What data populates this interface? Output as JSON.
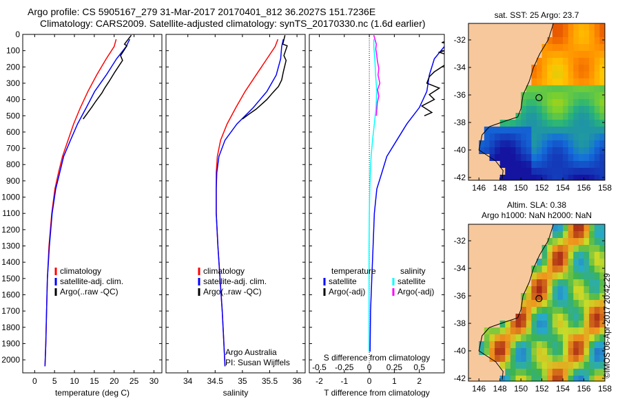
{
  "titles": {
    "line1": "Argo profile: CS 5905167_279 31-Mar-2017 20170401_812 36.2027S 151.7236E",
    "line2": "Climatology: CARS2009. Satellite-adjusted climatology: synTS_20170330.nc (1.6d earlier)"
  },
  "watermark": "©IMOS 06-Apr-2017 20:42:29",
  "colors": {
    "climatology": "#ff0000",
    "satellite": "#0000ff",
    "argo": "#000000",
    "salinity_satellite": "#00ffff",
    "salinity_argo": "#ff00ff",
    "land": "#f7c89c",
    "marker": "#e8e8e8"
  },
  "chart_data": [
    {
      "type": "line",
      "id": "temperature",
      "xlabel": "temperature (deg C)",
      "ylabel": "",
      "xlim": [
        -3,
        32
      ],
      "ylim": [
        2080,
        0
      ],
      "xticks": [
        0,
        5,
        10,
        15,
        20,
        25,
        30
      ],
      "yticks": [
        0,
        100,
        200,
        300,
        400,
        500,
        600,
        700,
        800,
        900,
        1000,
        1100,
        1200,
        1300,
        1400,
        1500,
        1600,
        1700,
        1800,
        1900,
        2000
      ],
      "legend": [
        "climatology",
        "satellite-adj. clim.",
        "Argo(..raw -QC)"
      ],
      "legend_position": "lower-center",
      "series": [
        {
          "name": "climatology",
          "color_key": "climatology",
          "x": [
            20.5,
            20.0,
            18.0,
            15.6,
            13.4,
            11.5,
            9.8,
            8.4,
            7.0,
            6.0,
            5.1,
            4.3,
            3.6,
            3.2,
            3.0,
            2.8,
            2.6
          ],
          "y": [
            30,
            75,
            150,
            250,
            350,
            450,
            550,
            650,
            750,
            850,
            950,
            1100,
            1300,
            1500,
            1700,
            1900,
            2040
          ]
        },
        {
          "name": "satellite-adj. clim.",
          "color_key": "satellite",
          "x": [
            23.9,
            23.0,
            20.6,
            18.0,
            15.1,
            13.0,
            10.8,
            9.0,
            7.3,
            6.3,
            5.3,
            4.4,
            3.7,
            3.2,
            3.0,
            2.8,
            2.6
          ],
          "y": [
            30,
            75,
            150,
            250,
            350,
            450,
            550,
            650,
            750,
            850,
            950,
            1100,
            1300,
            1500,
            1700,
            1900,
            2040
          ]
        },
        {
          "name": "Argo(..raw -QC)",
          "color_key": "argo",
          "x": [
            24.3,
            22.6,
            23.2,
            21.6,
            22.1,
            20.2,
            18.7,
            17.6,
            16.9,
            15.4,
            14.3,
            13.1,
            12.2
          ],
          "y": [
            5,
            60,
            70,
            130,
            160,
            230,
            290,
            330,
            360,
            410,
            450,
            490,
            520
          ]
        }
      ]
    },
    {
      "type": "line",
      "id": "salinity",
      "xlabel": "salinity",
      "xlim": [
        33.6,
        36.15
      ],
      "ylim": [
        2080,
        0
      ],
      "xticks": [
        34,
        34.5,
        35,
        35.5,
        36
      ],
      "legend": [
        "climatology",
        "satellite-adj. clim.",
        "Argo(..raw -QC)"
      ],
      "legend_position": "lower-center",
      "annotation": [
        "Argo Australia",
        "PI: Susan Wijffels"
      ],
      "series": [
        {
          "name": "climatology",
          "color_key": "climatology",
          "x": [
            35.65,
            35.6,
            35.45,
            35.25,
            35.05,
            34.88,
            34.72,
            34.6,
            34.54,
            34.52,
            34.52,
            34.52,
            34.55,
            34.59,
            34.63,
            34.66,
            34.68
          ],
          "y": [
            30,
            75,
            150,
            250,
            350,
            450,
            550,
            650,
            750,
            850,
            950,
            1100,
            1300,
            1500,
            1700,
            1900,
            2040
          ]
        },
        {
          "name": "satellite-adj. clim.",
          "color_key": "satellite",
          "x": [
            35.75,
            35.72,
            35.7,
            35.62,
            35.45,
            35.2,
            34.9,
            34.68,
            34.57,
            34.53,
            34.52,
            34.52,
            34.55,
            34.59,
            34.63,
            34.66,
            34.68
          ],
          "y": [
            30,
            75,
            150,
            250,
            350,
            450,
            550,
            650,
            750,
            850,
            950,
            1100,
            1300,
            1500,
            1700,
            1900,
            2040
          ]
        },
        {
          "name": "Argo(..raw -QC)",
          "color_key": "argo",
          "x": [
            35.78,
            35.74,
            35.82,
            35.76,
            35.8,
            35.75,
            35.72,
            35.66,
            35.55,
            35.45,
            35.35,
            35.25,
            35.12,
            35.0
          ],
          "y": [
            5,
            60,
            70,
            130,
            160,
            230,
            280,
            320,
            360,
            400,
            430,
            460,
            490,
            520
          ]
        }
      ]
    },
    {
      "type": "line",
      "id": "difference",
      "xlabel": "T difference from climatology",
      "xlabel_top": "S difference from climatology",
      "xlim": [
        -2.4,
        3.0
      ],
      "ylim": [
        2080,
        0
      ],
      "xticks": [
        -2,
        -1,
        0,
        1,
        2
      ],
      "xticks_top": [
        -0.5,
        -0.25,
        0,
        0.25,
        0.5
      ],
      "legend_left": {
        "title": "temperature",
        "items": [
          "satellite",
          "Argo(-adj)"
        ]
      },
      "legend_right": {
        "title": "salinity",
        "items": [
          "satellite",
          "Argo(-adj)"
        ]
      },
      "series": [
        {
          "name": "temperature satellite",
          "color_key": "satellite",
          "x": [
            3.4,
            3.0,
            2.6,
            2.4,
            2.3,
            2.0,
            1.5,
            1.1,
            0.7,
            0.5,
            0.3,
            0.2,
            0.15,
            0.1,
            0.05,
            0.03
          ],
          "y": [
            30,
            75,
            150,
            250,
            350,
            450,
            550,
            650,
            750,
            850,
            950,
            1100,
            1300,
            1500,
            1700,
            1950
          ]
        },
        {
          "name": "temperature Argo(-adj)",
          "color_key": "argo",
          "x": [
            3.8,
            2.9,
            3.6,
            2.8,
            3.4,
            3.0,
            2.6,
            2.4,
            2.3,
            2.8,
            2.4,
            2.6,
            2.1,
            2.5,
            2.2
          ],
          "y": [
            5,
            50,
            70,
            110,
            140,
            190,
            230,
            260,
            300,
            330,
            370,
            400,
            440,
            480,
            500
          ]
        },
        {
          "name": "salinity satellite",
          "color_key": "salinity_satellite",
          "x": [
            0.18,
            0.18,
            0.22,
            0.25,
            0.3,
            0.27,
            0.2,
            0.13,
            0.07,
            0.04,
            0.02,
            0.0,
            -0.01,
            -0.01,
            -0.01,
            -0.01
          ],
          "y": [
            30,
            75,
            150,
            250,
            350,
            450,
            550,
            650,
            750,
            850,
            950,
            1100,
            1300,
            1500,
            1700,
            1950
          ]
        },
        {
          "name": "salinity Argo(-adj)",
          "color_key": "salinity_argo",
          "x": [
            0.18,
            0.28,
            0.26,
            0.3,
            0.32,
            0.38,
            0.35,
            0.42,
            0.33,
            0.38,
            0.32,
            0.3,
            0.28
          ],
          "y": [
            5,
            60,
            90,
            130,
            160,
            210,
            250,
            300,
            340,
            380,
            420,
            460,
            500
          ]
        }
      ]
    },
    {
      "type": "heatmap",
      "id": "sst-map",
      "title": "sat. SST: 25 Argo: 23.7",
      "xlim": [
        145,
        158
      ],
      "ylim": [
        -42.2,
        -30.8
      ],
      "xticks": [
        146,
        148,
        150,
        152,
        154,
        156,
        158
      ],
      "yticks": [
        -32,
        -34,
        -36,
        -38,
        -40,
        -42
      ],
      "ytick_side": "right",
      "argo_position": {
        "lon": 151.72,
        "lat": -36.2
      }
    },
    {
      "type": "heatmap",
      "id": "sla-map",
      "title_lines": [
        "Altim. SLA: 0.38",
        "Argo h1000: NaN h2000: NaN"
      ],
      "xlim": [
        145,
        158
      ],
      "ylim": [
        -42.2,
        -30.8
      ],
      "xticks": [
        146,
        148,
        150,
        152,
        154,
        156,
        158
      ],
      "yticks": [
        -32,
        -34,
        -36,
        -38,
        -40,
        -42
      ],
      "ytick_side": "right",
      "argo_position": {
        "lon": 151.72,
        "lat": -36.2
      }
    }
  ]
}
